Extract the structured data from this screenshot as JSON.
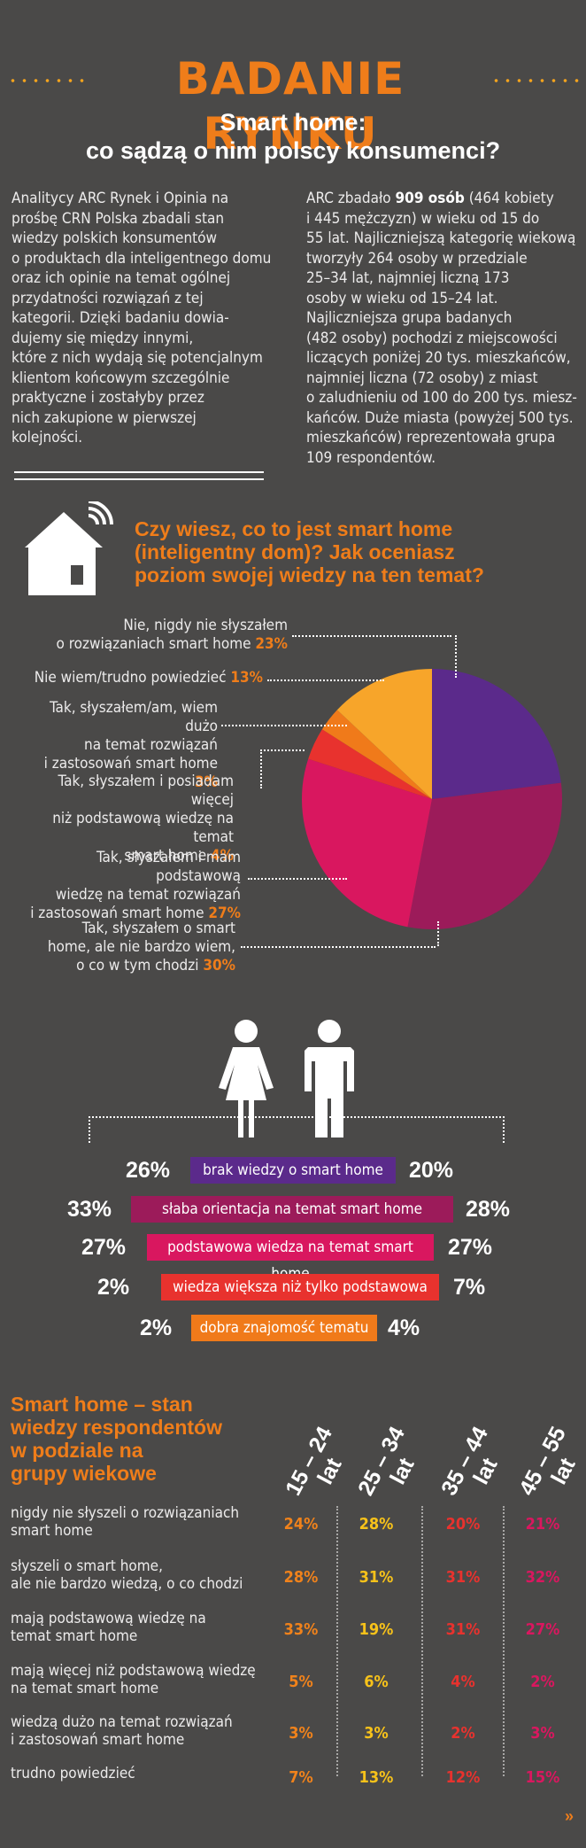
{
  "header": {
    "title": "BADANIE RYNKU",
    "subtitle_line1": "Smart home:",
    "subtitle_line2": "co sądzą o nim polscy konsumenci?"
  },
  "intro": {
    "left": [
      "Analitycy ARC Rynek i Opinia na",
      "prośbę CRN Polska zbadali stan",
      "wiedzy polskich konsumentów",
      "o produktach dla inteligentnego domu",
      "oraz ich opinie na temat ogólnej",
      "przydatności rozwiązań z tej",
      "kategorii. Dzięki badaniu dowia-",
      "dujemy się między innymi,",
      "które z nich wydają się potencjalnym",
      "klientom końcowym szczególnie",
      "praktyczne i zostałyby przez",
      "nich zakupione w pierwszej",
      "kolejności."
    ],
    "right_prefix": "ARC zbadało ",
    "right_bold": "909 osób",
    "right_first_rest": " (464 kobiety",
    "right": [
      "i 445 mężczyzn) w wieku od 15 do",
      "55 lat. Najliczniejszą kategorię wiekową",
      "tworzyły 264 osoby w przedziale",
      "25–34 lat, najmniej liczną 173",
      "osoby w wieku od 15–24 lat.",
      "Najliczniejsza grupa badanych",
      "(482 osoby) pochodzi z miejscowości",
      "liczących poniżej 20 tys. mieszkańców,",
      "najmniej liczna (72 osoby) z miast",
      "o zaludnieniu od 100 do 200 tys. miesz-",
      "kańców. Duże miasta (powyżej 500 tys.",
      "mieszkańców) reprezentowała grupa",
      "109 respondentów."
    ]
  },
  "question": {
    "line1": "Czy wiesz, co to jest smart home",
    "line2": "(inteligentny dom)? Jak oceniasz",
    "line3": "poziom swojej wiedzy na ten temat?",
    "icon": "house-wifi-icon"
  },
  "pie": {
    "slices": [
      {
        "value": 23,
        "color": "#5b2a8b"
      },
      {
        "value": 30,
        "color": "#9c1b5a"
      },
      {
        "value": 27,
        "color": "#d9175f"
      },
      {
        "value": 4,
        "color": "#e8322e"
      },
      {
        "value": 3,
        "color": "#f07a1a"
      },
      {
        "value": 13,
        "color": "#f7a52a"
      }
    ],
    "labels": [
      {
        "lines": [
          "Nie, nigdy nie słyszałem",
          "o rozwiązaniach smart home"
        ],
        "pct": "23%"
      },
      {
        "lines": [
          "Nie wiem/trudno powiedzieć"
        ],
        "pct": "13%"
      },
      {
        "lines": [
          "Tak, słyszałem/am, wiem dużo",
          "na temat rozwiązań",
          "i zastosowań smart home"
        ],
        "pct": "3%"
      },
      {
        "lines": [
          "Tak, słyszałem i posiadam więcej",
          "niż podstawową wiedzę na temat",
          "smart home"
        ],
        "pct": "4%"
      },
      {
        "lines": [
          "Tak, słyszałem i mam podstawową",
          "wiedzę na temat rozwiązań",
          "i zastosowań smart home"
        ],
        "pct": "27%"
      },
      {
        "lines": [
          "Tak, słyszałem o smart",
          "home, ale nie bardzo wiem,",
          "o co w tym chodzi"
        ],
        "pct": "30%"
      }
    ]
  },
  "gender": {
    "female_icon": "woman-icon",
    "male_icon": "man-icon",
    "rows": [
      {
        "label": "brak wiedzy o smart home",
        "female": "26%",
        "male": "20%",
        "color": "#5b2a8b"
      },
      {
        "label": "słaba orientacja na temat smart home",
        "female": "33%",
        "male": "28%",
        "color": "#9c1b5a"
      },
      {
        "label": "podstawowa wiedza na temat smart home",
        "female": "27%",
        "male": "27%",
        "color": "#d9175f"
      },
      {
        "label": "wiedza większa niż tylko podstawowa",
        "female": "2%",
        "male": "7%",
        "color": "#e8322e"
      },
      {
        "label": "dobra znajomość tematu",
        "female": "2%",
        "male": "4%",
        "color": "#f07a1a"
      }
    ]
  },
  "age": {
    "title_lines": [
      "Smart home – stan",
      "wiedzy respondentów",
      "w podziale na",
      "grupy wiekowe"
    ],
    "groups": [
      {
        "range": "15 – 24",
        "unit": "lat",
        "color": "#f0821b"
      },
      {
        "range": "25 – 34",
        "unit": "lat",
        "color": "#f7c21a"
      },
      {
        "range": "35 – 44",
        "unit": "lat",
        "color": "#e8322e"
      },
      {
        "range": "45 – 55",
        "unit": "lat",
        "color": "#d9175f"
      }
    ],
    "rows": [
      {
        "lines": [
          "nigdy nie słyszeli o rozwiązaniach",
          "smart home"
        ],
        "values": [
          "24%",
          "28%",
          "20%",
          "21%"
        ]
      },
      {
        "lines": [
          "słyszeli o smart home,",
          "ale nie bardzo wiedzą, o co chodzi"
        ],
        "values": [
          "28%",
          "31%",
          "31%",
          "32%"
        ]
      },
      {
        "lines": [
          "mają podstawową wiedzę na",
          "temat smart home"
        ],
        "values": [
          "33%",
          "19%",
          "31%",
          "27%"
        ]
      },
      {
        "lines": [
          "mają więcej niż podstawową wiedzę",
          "na temat smart home"
        ],
        "values": [
          "5%",
          "6%",
          "4%",
          "2%"
        ]
      },
      {
        "lines": [
          "wiedzą dużo na temat rozwiązań",
          "i zastosowań smart home"
        ],
        "values": [
          "3%",
          "3%",
          "2%",
          "3%"
        ]
      },
      {
        "lines": [
          "trudno powiedzieć"
        ],
        "values": [
          "7%",
          "13%",
          "12%",
          "15%"
        ]
      }
    ]
  },
  "footer": {
    "next": "»"
  }
}
